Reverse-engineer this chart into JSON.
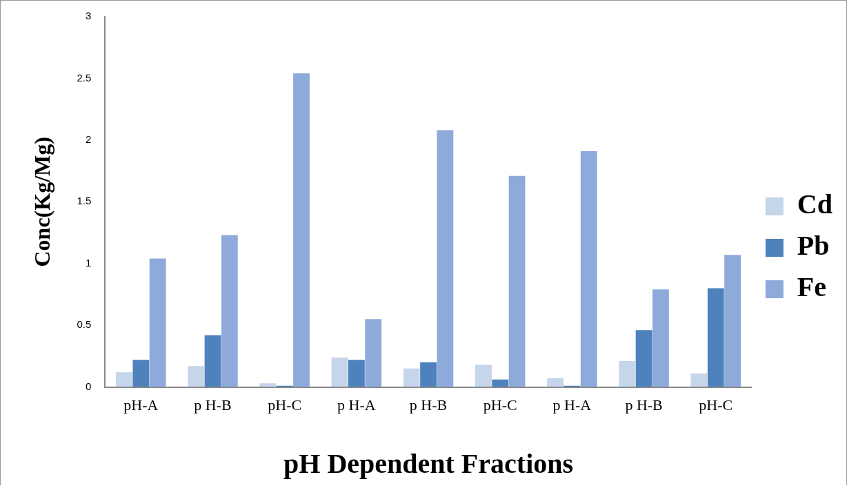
{
  "chart_data": {
    "type": "bar",
    "xlabel": "pH Dependent Fractions",
    "ylabel": "Conc(Kg/Mg)",
    "categories": [
      "pH-A",
      "p H-B",
      "pH-C",
      "p H-A",
      "p H-B",
      "pH-C",
      "p H-A",
      "p H-B",
      "pH-C"
    ],
    "series": [
      {
        "name": "Cd",
        "color": "#c5d5ea",
        "values": [
          0.12,
          0.17,
          0.03,
          0.24,
          0.15,
          0.18,
          0.07,
          0.21,
          0.11
        ]
      },
      {
        "name": "Pb",
        "color": "#4f81bd",
        "values": [
          0.22,
          0.42,
          0.01,
          0.22,
          0.2,
          0.06,
          0.01,
          0.46,
          0.8
        ]
      },
      {
        "name": "Fe",
        "color": "#8eaadb",
        "values": [
          1.04,
          1.23,
          2.54,
          0.55,
          2.08,
          1.71,
          1.91,
          0.79,
          1.07
        ]
      }
    ],
    "ylim": [
      0,
      3
    ],
    "yticks": [
      0,
      0.5,
      1,
      1.5,
      2,
      2.5,
      3
    ],
    "grid": false,
    "legend": "right"
  }
}
